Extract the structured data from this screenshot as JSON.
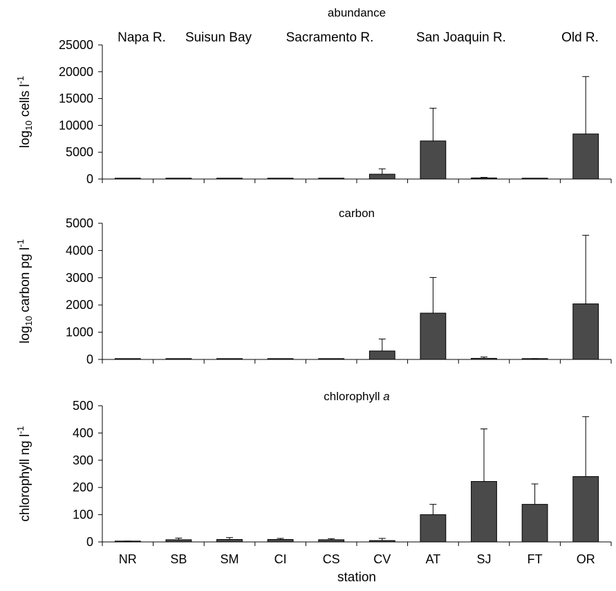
{
  "chart_data": [
    {
      "type": "bar",
      "title": "abundance",
      "region_labels": [
        "Napa R.",
        "Suisun Bay",
        "Sacramento R.",
        "San Joaquin R.",
        "Old R."
      ],
      "ylabel": {
        "prefix": "log",
        "sub": "10",
        "main": " cells l",
        "sup": "-1"
      },
      "categories": [
        "NR",
        "SB",
        "SM",
        "CI",
        "CS",
        "CV",
        "AT",
        "SJ",
        "FT",
        "OR"
      ],
      "values": [
        0,
        0,
        0,
        0,
        0,
        900,
        7100,
        200,
        0,
        8400
      ],
      "error": [
        0,
        0,
        0,
        0,
        0,
        1000,
        6100,
        100,
        0,
        10700
      ],
      "ylim": [
        0,
        25000
      ],
      "yticks": [
        0,
        5000,
        10000,
        15000,
        20000,
        25000
      ],
      "bar_color": "#4a4a4a",
      "grid": false
    },
    {
      "type": "bar",
      "title": "carbon",
      "ylabel": {
        "prefix": "log",
        "sub": "10",
        "main": " carbon pg l",
        "sup": "-1"
      },
      "categories": [
        "NR",
        "SB",
        "SM",
        "CI",
        "CS",
        "CV",
        "AT",
        "SJ",
        "FT",
        "OR"
      ],
      "values": [
        0,
        0,
        0,
        0,
        0,
        310,
        1700,
        40,
        0,
        2040
      ],
      "error": [
        0,
        0,
        0,
        0,
        0,
        440,
        1310,
        50,
        30,
        2520
      ],
      "ylim": [
        0,
        5000
      ],
      "yticks": [
        0,
        1000,
        2000,
        3000,
        4000,
        5000
      ],
      "bar_color": "#4a4a4a",
      "grid": false
    },
    {
      "type": "bar",
      "title": "chlorophyll",
      "title_italic": "a",
      "ylabel": {
        "main": "chlorophyll   ng l",
        "sup": "-1"
      },
      "categories": [
        "NR",
        "SB",
        "SM",
        "CI",
        "CS",
        "CV",
        "AT",
        "SJ",
        "FT",
        "OR"
      ],
      "values": [
        2,
        8,
        9,
        9,
        8,
        5,
        100,
        222,
        138,
        240
      ],
      "error": [
        1,
        6,
        7,
        4,
        4,
        8,
        38,
        193,
        75,
        220
      ],
      "ylim": [
        0,
        500
      ],
      "yticks": [
        0,
        100,
        200,
        300,
        400,
        500
      ],
      "xlabel": "station",
      "bar_color": "#4a4a4a",
      "grid": false
    }
  ]
}
